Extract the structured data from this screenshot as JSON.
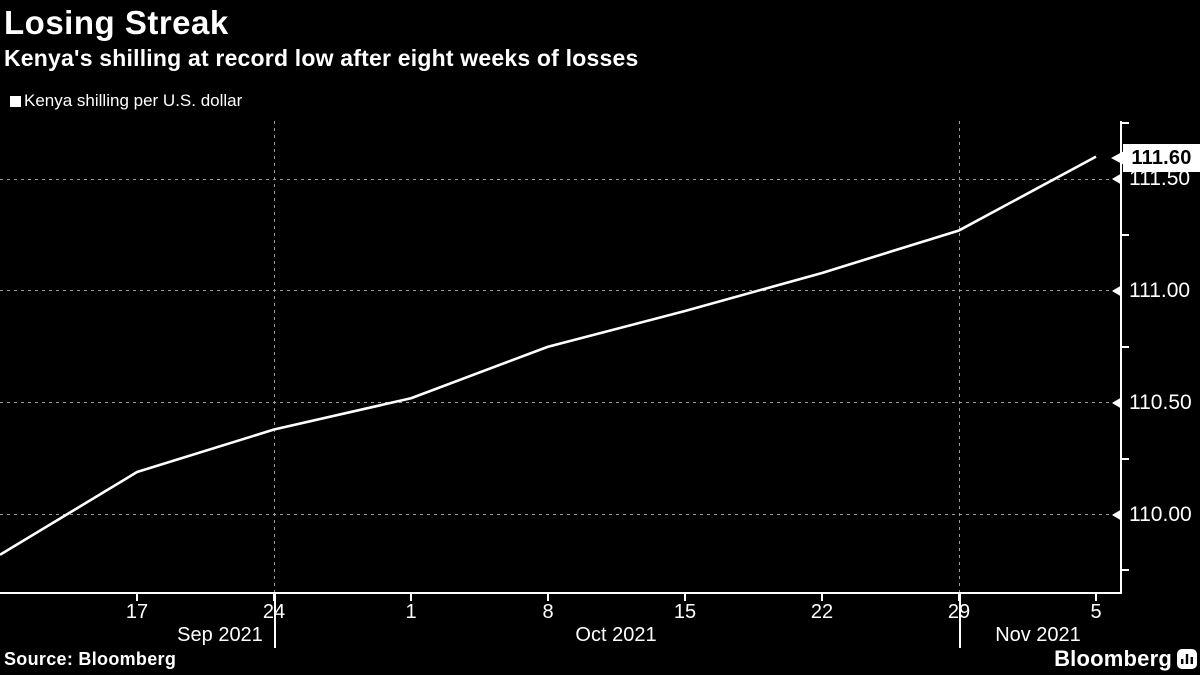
{
  "header": {
    "title": "Losing Streak",
    "subtitle": "Kenya's shilling at record low after eight weeks of losses"
  },
  "legend": {
    "label": "Kenya shilling per U.S. dollar",
    "swatch_color": "#ffffff"
  },
  "footer": {
    "source": "Source: Bloomberg",
    "brand": "Bloomberg"
  },
  "colors": {
    "background": "#000000",
    "text": "#ffffff",
    "line": "#ffffff",
    "grid": "#9b9b9b",
    "callout_bg": "#ffffff",
    "callout_text": "#000000"
  },
  "chart_data": {
    "type": "line",
    "title": "Losing Streak",
    "subtitle": "Kenya's shilling at record low after eight weeks of losses",
    "series": [
      {
        "name": "Kenya shilling per U.S. dollar",
        "x": [
          "Sep 10 2021",
          "Sep 17 2021",
          "Sep 24 2021",
          "Oct 1 2021",
          "Oct 8 2021",
          "Oct 15 2021",
          "Oct 22 2021",
          "Oct 29 2021",
          "Nov 5 2021"
        ],
        "values": [
          109.82,
          110.19,
          110.38,
          110.52,
          110.75,
          110.91,
          111.08,
          111.27,
          111.6
        ]
      }
    ],
    "last_value_label": "111.60",
    "x_tick_labels": [
      "17",
      "24",
      "1",
      "8",
      "15",
      "22",
      "29",
      "5"
    ],
    "x_tick_indices": [
      1,
      2,
      3,
      4,
      5,
      6,
      7,
      8
    ],
    "month_labels": [
      "Sep 2021",
      "Oct 2021",
      "Nov 2021"
    ],
    "month_separator_indices": [
      2,
      7
    ],
    "y_tick_labels": [
      "111.50",
      "111.00",
      "110.50",
      "110.00"
    ],
    "y_tick_values": [
      111.5,
      111.0,
      110.5,
      110.0
    ],
    "y_minor_tick_values": [
      111.75,
      111.25,
      110.75,
      110.25,
      109.75
    ],
    "ylim": [
      109.65,
      111.77
    ],
    "grid": "dotted",
    "legend_position": "top-left",
    "y_axis_position": "right",
    "source": "Bloomberg"
  }
}
